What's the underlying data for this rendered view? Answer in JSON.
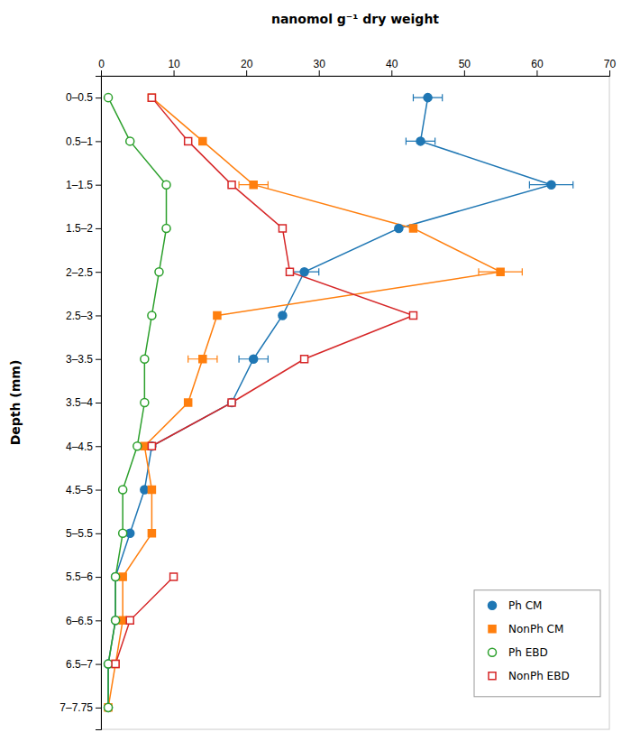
{
  "chart_data": {
    "type": "line",
    "xlabel": "nanomol g⁻¹ dry weight",
    "ylabel": "Depth (mm)",
    "categories": [
      "0–0.5",
      "0.5–1",
      "1–1.5",
      "1.5–2",
      "2–2.5",
      "2.5–3",
      "3–3.5",
      "3.5–4",
      "4–4.5",
      "4.5–5",
      "5–5.5",
      "5.5–6",
      "6–6.5",
      "6.5–7",
      "7–7.75"
    ],
    "xlim": [
      0,
      70
    ],
    "xticks": [
      0,
      10,
      20,
      30,
      40,
      50,
      60,
      70
    ],
    "grid": false,
    "legend": "lower right",
    "series": [
      {
        "name": "Ph CM",
        "marker": "filled-circle",
        "values": [
          45,
          44,
          62,
          41,
          28,
          25,
          21,
          18,
          7,
          6,
          4,
          2,
          2,
          1,
          1
        ],
        "errors": [
          2,
          2,
          3,
          null,
          2,
          null,
          2,
          null,
          null,
          null,
          null,
          null,
          null,
          null,
          null
        ]
      },
      {
        "name": "NonPh CM",
        "marker": "filled-square",
        "values": [
          7,
          14,
          21,
          43,
          55,
          16,
          14,
          12,
          6,
          7,
          7,
          3,
          3,
          2,
          1
        ],
        "errors": [
          null,
          null,
          2,
          null,
          3,
          null,
          2,
          null,
          null,
          null,
          null,
          null,
          null,
          null,
          null
        ]
      },
      {
        "name": "Ph EBD",
        "marker": "open-circle",
        "values": [
          1,
          4,
          9,
          9,
          8,
          7,
          6,
          6,
          5,
          3,
          3,
          2,
          2,
          1,
          1
        ]
      },
      {
        "name": "NonPh EBD",
        "marker": "open-square",
        "values": [
          7,
          12,
          18,
          25,
          26,
          43,
          28,
          18,
          7,
          null,
          null,
          10,
          4,
          2,
          null
        ]
      }
    ]
  }
}
